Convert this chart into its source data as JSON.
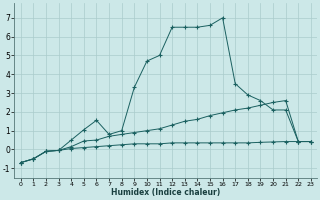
{
  "xlabel": "Humidex (Indice chaleur)",
  "background_color": "#cce8e8",
  "grid_color": "#aacccc",
  "line_color": "#1a6060",
  "xlim": [
    -0.5,
    23.5
  ],
  "ylim": [
    -1.5,
    7.8
  ],
  "xticks": [
    0,
    1,
    2,
    3,
    4,
    5,
    6,
    7,
    8,
    9,
    10,
    11,
    12,
    13,
    14,
    15,
    16,
    17,
    18,
    19,
    20,
    21,
    22,
    23
  ],
  "yticks": [
    -1,
    0,
    1,
    2,
    3,
    4,
    5,
    6,
    7
  ],
  "series1_x": [
    0,
    1,
    2,
    3,
    4,
    5,
    6,
    7,
    8,
    9,
    10,
    11,
    12,
    13,
    14,
    15,
    16,
    17,
    18,
    19,
    20,
    21,
    22,
    23
  ],
  "series1_y": [
    -0.7,
    -0.5,
    -0.1,
    -0.05,
    0.05,
    0.1,
    0.15,
    0.2,
    0.25,
    0.3,
    0.3,
    0.3,
    0.35,
    0.35,
    0.35,
    0.35,
    0.35,
    0.35,
    0.35,
    0.38,
    0.4,
    0.42,
    0.42,
    0.42
  ],
  "series2_x": [
    0,
    1,
    2,
    3,
    4,
    5,
    6,
    7,
    8,
    9,
    10,
    11,
    12,
    13,
    14,
    15,
    16,
    17,
    18,
    19,
    20,
    21,
    22,
    23
  ],
  "series2_y": [
    -0.7,
    -0.5,
    -0.1,
    -0.05,
    0.15,
    0.45,
    0.5,
    0.7,
    0.8,
    0.9,
    1.0,
    1.1,
    1.3,
    1.5,
    1.6,
    1.8,
    1.95,
    2.1,
    2.2,
    2.35,
    2.5,
    2.6,
    0.42,
    0.42
  ],
  "series3_x": [
    0,
    1,
    2,
    3,
    4,
    5,
    6,
    7,
    8,
    9,
    10,
    11,
    12,
    13,
    14,
    15,
    16,
    17,
    18,
    19,
    20,
    21,
    22,
    23
  ],
  "series3_y": [
    -0.7,
    -0.5,
    -0.1,
    -0.05,
    0.5,
    1.05,
    1.55,
    0.8,
    1.0,
    3.3,
    4.7,
    5.0,
    6.5,
    6.5,
    6.5,
    6.6,
    7.0,
    3.5,
    2.9,
    2.6,
    2.1,
    2.1,
    0.42,
    0.42
  ]
}
